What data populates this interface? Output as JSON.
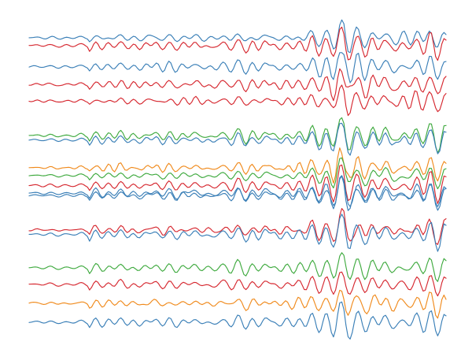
{
  "chart_data": {
    "type": "line",
    "title": "",
    "xlabel": "",
    "ylabel": "",
    "axes_visible": false,
    "grid": false,
    "legend": false,
    "x_range": [
      0,
      200
    ],
    "trace_order": "top to bottom",
    "samples_per_trace": 200,
    "colors": {
      "blue": "#3a7fb7",
      "red": "#d62830",
      "green": "#3faa3f",
      "orange": "#f08a1c"
    },
    "groups": [
      {
        "traces": [
          {
            "color": "blue",
            "offset": 0.0
          },
          {
            "color": "red",
            "offset": -0.35
          }
        ]
      },
      {
        "traces": [
          {
            "color": "blue",
            "offset": -1.3
          },
          {
            "color": "red",
            "offset": -2.1
          },
          {
            "color": "red",
            "offset": -2.85
          }
        ]
      },
      {
        "traces": [
          {
            "color": "green",
            "offset": -4.4
          },
          {
            "color": "blue",
            "offset": -4.6
          }
        ]
      },
      {
        "traces": [
          {
            "color": "orange",
            "offset": -5.85
          },
          {
            "color": "green",
            "offset": -6.2
          },
          {
            "color": "red",
            "offset": -6.65
          },
          {
            "color": "blue",
            "offset": -7.0
          },
          {
            "color": "blue",
            "offset": -7.1
          }
        ]
      },
      {
        "traces": [
          {
            "color": "red",
            "offset": -8.65
          },
          {
            "color": "blue",
            "offset": -8.85
          }
        ]
      },
      {
        "traces": [
          {
            "color": "green",
            "offset": -10.35
          },
          {
            "color": "red",
            "offset": -11.1
          },
          {
            "color": "orange",
            "offset": -11.95
          },
          {
            "color": "blue",
            "offset": -12.8
          }
        ]
      }
    ],
    "event_x": 150
  }
}
